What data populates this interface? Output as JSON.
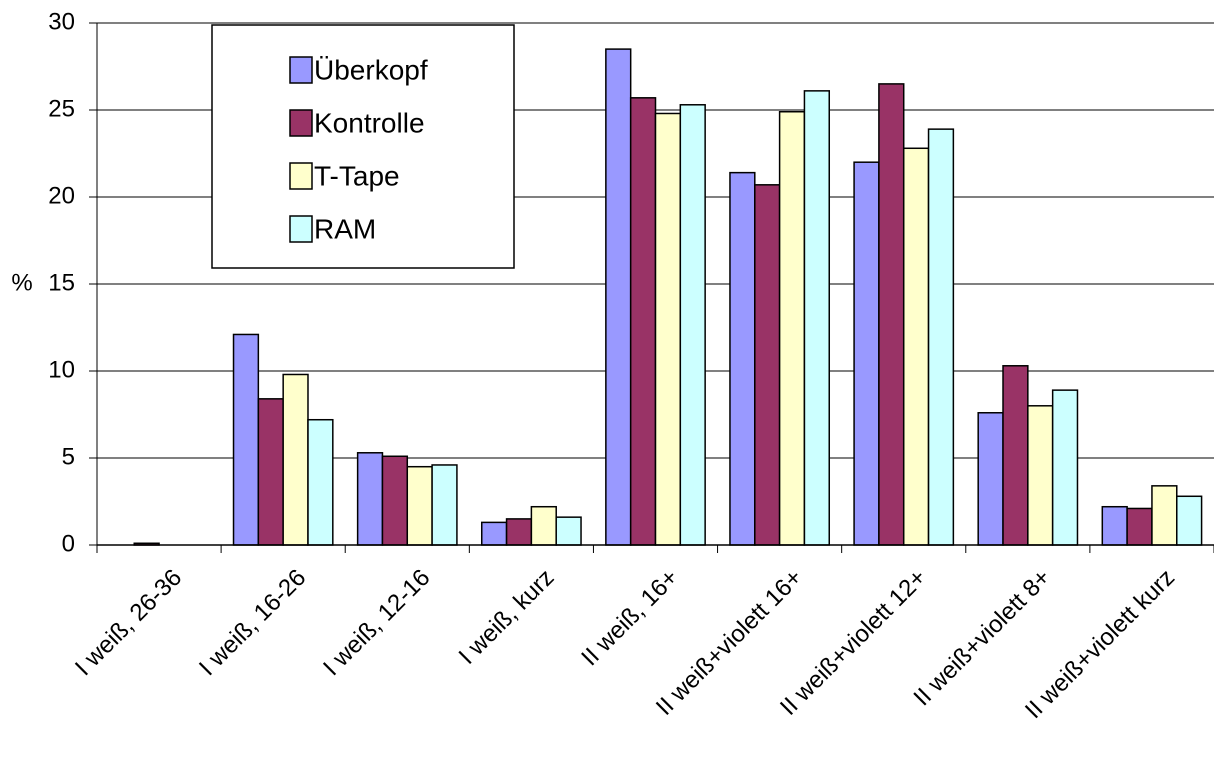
{
  "chart_data": {
    "type": "bar",
    "y_label": "%",
    "categories": [
      "I weiß, 26-36",
      "I weiß, 16-26",
      "I weiß, 12-16",
      "I weiß, kurz",
      "II weiß, 16+",
      "II weiß+violett 16+",
      "II weiß+violett 12+",
      "II weiß+violett 8+",
      "II weiß+violett kurz"
    ],
    "series": [
      {
        "name": "Überkopf",
        "color": "#9999ff",
        "values": [
          0,
          12.1,
          5.3,
          1.3,
          28.5,
          21.4,
          22.0,
          7.6,
          2.2
        ]
      },
      {
        "name": "Kontrolle",
        "color": "#993366",
        "values": [
          0.1,
          8.4,
          5.1,
          1.5,
          25.7,
          20.7,
          26.5,
          10.3,
          2.1
        ]
      },
      {
        "name": "T-Tape",
        "color": "#ffffcc",
        "values": [
          0,
          9.8,
          4.5,
          2.2,
          24.8,
          24.9,
          22.8,
          8.0,
          3.4
        ]
      },
      {
        "name": "RAM",
        "color": "#ccffff",
        "values": [
          0,
          7.2,
          4.6,
          1.6,
          25.3,
          26.1,
          23.9,
          8.9,
          2.8
        ]
      }
    ],
    "ylim": [
      0,
      30
    ],
    "yticks": [
      0,
      5,
      10,
      15,
      20,
      25,
      30
    ],
    "grid": true,
    "legend": "top-left"
  }
}
